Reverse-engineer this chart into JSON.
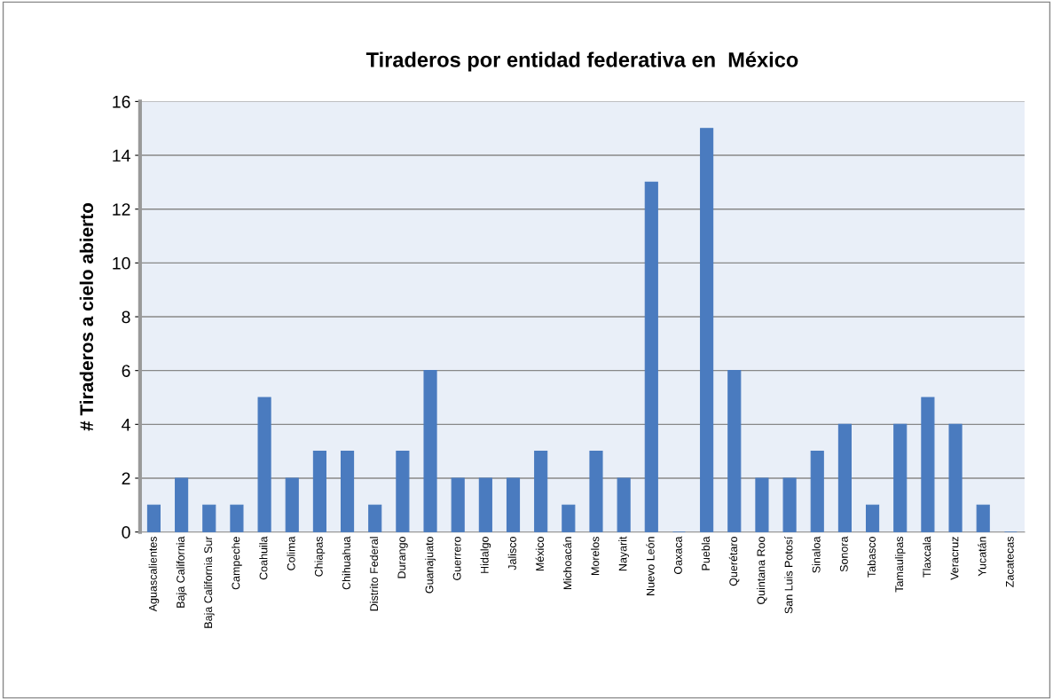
{
  "chart_data": {
    "type": "bar",
    "title": "Tiraderos por entidad federativa en  México",
    "ylabel": "# Tiraderos a cielo abierto",
    "categories": [
      "Aguascalientes",
      "Baja California",
      "Baja California Sur",
      "Campeche",
      "Coahuila",
      "Colima",
      "Chiapas",
      "Chihuahua",
      "Distrito Federal",
      "Durango",
      "Guanajuato",
      "Guerrero",
      "Hidalgo",
      "Jalisco",
      "México",
      "Michoacán",
      "Morelos",
      "Nayarit",
      "Nuevo León",
      "Oaxaca",
      "Puebla",
      "Querétaro",
      "Quintana Roo",
      "San Luis Potosí",
      "Sinaloa",
      "Sonora",
      "Tabasco",
      "Tamaulipas",
      "Tlaxcala",
      "Veracruz",
      "Yucatán",
      "Zacatecas"
    ],
    "values": [
      1,
      2,
      1,
      1,
      5,
      2,
      3,
      3,
      1,
      3,
      6,
      2,
      2,
      2,
      3,
      1,
      3,
      2,
      13,
      0,
      15,
      6,
      2,
      2,
      3,
      4,
      1,
      4,
      5,
      4,
      1,
      0
    ],
    "color": "#4a7bbf",
    "ylim": [
      0,
      16
    ],
    "yticks": [
      0,
      2,
      4,
      6,
      8,
      10,
      12,
      14,
      16
    ],
    "grid": "y",
    "legend": false
  }
}
